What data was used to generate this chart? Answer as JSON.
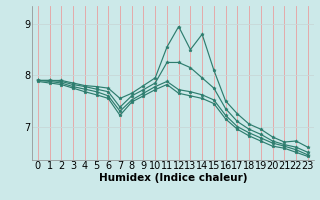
{
  "title": "",
  "xlabel": "Humidex (Indice chaleur)",
  "ylabel": "",
  "bg_color": "#cce9e9",
  "line_color": "#2d7d6e",
  "grid_color_v": "#e8a0a0",
  "grid_color_h": "#c8d8d8",
  "x_values": [
    0,
    1,
    2,
    3,
    4,
    5,
    6,
    7,
    8,
    9,
    10,
    11,
    12,
    13,
    14,
    15,
    16,
    17,
    18,
    19,
    20,
    21,
    22,
    23
  ],
  "lines": [
    [
      7.9,
      7.9,
      7.9,
      7.85,
      7.8,
      7.78,
      7.75,
      7.55,
      7.65,
      7.8,
      7.95,
      8.55,
      8.95,
      8.5,
      8.8,
      8.1,
      7.5,
      7.25,
      7.05,
      6.95,
      6.8,
      6.7,
      6.72,
      6.6
    ],
    [
      7.9,
      7.9,
      7.88,
      7.82,
      7.78,
      7.73,
      7.68,
      7.38,
      7.6,
      7.72,
      7.85,
      8.25,
      8.25,
      8.15,
      7.95,
      7.75,
      7.35,
      7.1,
      6.95,
      6.85,
      6.72,
      6.65,
      6.6,
      6.5
    ],
    [
      7.9,
      7.88,
      7.85,
      7.78,
      7.73,
      7.68,
      7.6,
      7.3,
      7.52,
      7.65,
      7.78,
      7.88,
      7.72,
      7.68,
      7.62,
      7.52,
      7.22,
      7.0,
      6.88,
      6.78,
      6.68,
      6.62,
      6.55,
      6.45
    ],
    [
      7.88,
      7.85,
      7.82,
      7.75,
      7.68,
      7.62,
      7.55,
      7.22,
      7.48,
      7.6,
      7.72,
      7.82,
      7.65,
      7.6,
      7.55,
      7.45,
      7.15,
      6.95,
      6.82,
      6.72,
      6.62,
      6.58,
      6.5,
      6.42
    ]
  ],
  "xlim": [
    -0.5,
    23.5
  ],
  "ylim": [
    6.35,
    9.35
  ],
  "yticks": [
    7,
    8,
    9
  ],
  "xticks": [
    0,
    1,
    2,
    3,
    4,
    5,
    6,
    7,
    8,
    9,
    10,
    11,
    12,
    13,
    14,
    15,
    16,
    17,
    18,
    19,
    20,
    21,
    22,
    23
  ],
  "xlabel_fontsize": 7.5,
  "tick_fontsize": 7
}
